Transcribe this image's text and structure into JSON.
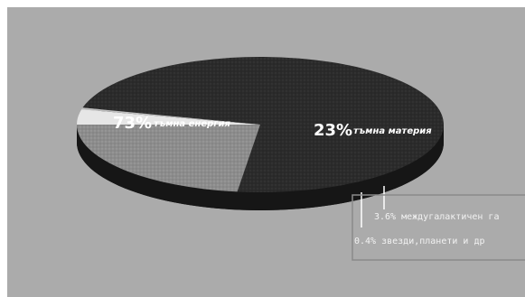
{
  "chart_data": {
    "type": "pie",
    "title": "",
    "slices": [
      {
        "percent_label": "73%",
        "name": "тъмна енергия",
        "value": 73,
        "color": "#2e2e2e"
      },
      {
        "percent_label": "23%",
        "name": "тъмна материя",
        "value": 23,
        "color": "#8a8a8a"
      },
      {
        "percent_label": "3.6%",
        "name": "междугалактичен га",
        "value": 3.6,
        "color": "#e6e6e6"
      },
      {
        "percent_label": "0.4%",
        "name": "звезди,планети и др",
        "value": 0.4,
        "color": "#bdbdbd"
      }
    ]
  },
  "callout": {
    "line1": "3.6% междугалактичен га",
    "line2": "0.4% звезди,планети и др"
  },
  "colors": {
    "background": "#ababab",
    "frame": "#ffffff"
  }
}
